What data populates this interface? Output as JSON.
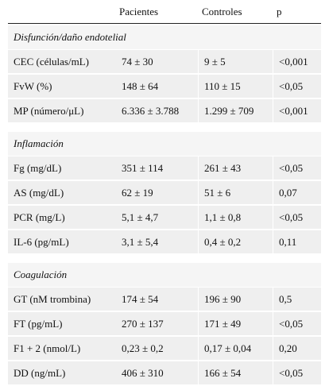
{
  "table": {
    "header": [
      "Pacientes",
      "Controles",
      "p"
    ],
    "sections": [
      {
        "title": "Disfunción/daño endotelial",
        "rows": [
          [
            "CEC (células/mL)",
            "74 ± 30",
            "9 ± 5",
            "<0,001"
          ],
          [
            "FvW (%)",
            "148 ± 64",
            "110 ± 15",
            "<0,05"
          ],
          [
            "MP (número/μL)",
            "6.336 ± 3.788",
            "1.299 ± 709",
            "<0,001"
          ]
        ]
      },
      {
        "title": "Inflamación",
        "rows": [
          [
            "Fg (mg/dL)",
            "351 ± 114",
            "261 ± 43",
            "<0,05"
          ],
          [
            "AS (mg/dL)",
            "62 ± 19",
            "51 ± 6",
            "0,07"
          ],
          [
            "PCR (mg/L)",
            "5,1 ± 4,7",
            "1,1 ± 0,8",
            "<0,05"
          ],
          [
            "IL-6 (pg/mL)",
            "3,1 ± 5,4",
            "0,4 ± 0,2",
            "0,11"
          ]
        ]
      },
      {
        "title": "Coagulación",
        "rows": [
          [
            "GT (nM trombina)",
            "174 ± 54",
            "196 ± 90",
            "0,5"
          ],
          [
            "FT (pg/mL)",
            "270 ± 137",
            "171 ± 49",
            "<0,05"
          ],
          [
            "F1 + 2 (nmol/L)",
            "0,23 ± 0,2",
            "0,17 ± 0,04",
            "0,20"
          ],
          [
            "DD (ng/mL)",
            "406 ± 310",
            "166 ± 54",
            "<0,05"
          ]
        ]
      }
    ]
  }
}
